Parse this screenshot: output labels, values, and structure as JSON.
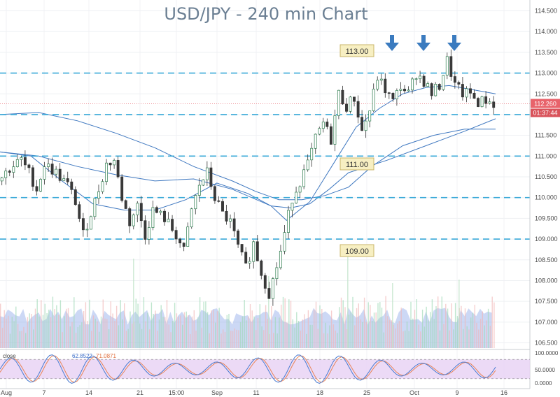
{
  "chart_data": {
    "type": "candlestick",
    "title": "USD/JPY - 240 min Chart",
    "ylim": [
      106.4,
      114.65
    ],
    "y_ticks": [
      "114.500",
      "114.000",
      "113.500",
      "113.000",
      "112.500",
      "112.000",
      "111.500",
      "111.000",
      "110.500",
      "110.000",
      "109.500",
      "109.000",
      "108.500",
      "108.000",
      "107.500",
      "107.000",
      "106.500"
    ],
    "x_ticks": [
      "Aug",
      "7",
      "14",
      "21",
      "15:00",
      "Sep",
      "11",
      "18",
      "25",
      "Oct",
      "9",
      "16"
    ],
    "support_resistance_levels": [
      113.0,
      112.0,
      111.0,
      110.0,
      109.0
    ],
    "level_labels": [
      "113.00",
      "111.00",
      "109.00"
    ],
    "current_price": "112.260",
    "countdown": "01:37:44",
    "arrows": 3,
    "price_path": [
      [
        0,
        110.4
      ],
      [
        3,
        110.7
      ],
      [
        6,
        110.9
      ],
      [
        8,
        110.6
      ],
      [
        10,
        110.2
      ],
      [
        12,
        110.8
      ],
      [
        15,
        110.6
      ],
      [
        18,
        110.3
      ],
      [
        20,
        109.9
      ],
      [
        22,
        109.1
      ],
      [
        25,
        109.9
      ],
      [
        28,
        110.8
      ],
      [
        30,
        110.9
      ],
      [
        32,
        110.0
      ],
      [
        34,
        109.4
      ],
      [
        36,
        109.8
      ],
      [
        38,
        109.1
      ],
      [
        40,
        109.7
      ],
      [
        43,
        109.5
      ],
      [
        46,
        109.1
      ],
      [
        48,
        108.7
      ],
      [
        50,
        109.7
      ],
      [
        52,
        110.3
      ],
      [
        54,
        110.6
      ],
      [
        56,
        110.0
      ],
      [
        58,
        109.6
      ],
      [
        60,
        109.4
      ],
      [
        62,
        108.8
      ],
      [
        64,
        108.3
      ],
      [
        66,
        108.9
      ],
      [
        68,
        108.2
      ],
      [
        70,
        107.7
      ],
      [
        71,
        108.0
      ],
      [
        73,
        108.7
      ],
      [
        76,
        110.0
      ],
      [
        78,
        110.4
      ],
      [
        80,
        110.8
      ],
      [
        82,
        111.4
      ],
      [
        84,
        111.8
      ],
      [
        86,
        111.4
      ],
      [
        88,
        112.5
      ],
      [
        90,
        112.2
      ],
      [
        92,
        112.4
      ],
      [
        94,
        111.6
      ],
      [
        96,
        112.1
      ],
      [
        98,
        112.9
      ],
      [
        100,
        112.6
      ],
      [
        102,
        112.3
      ],
      [
        104,
        112.7
      ],
      [
        106,
        112.5
      ],
      [
        108,
        113.0
      ],
      [
        110,
        112.8
      ],
      [
        112,
        112.5
      ],
      [
        114,
        112.7
      ],
      [
        116,
        113.3
      ],
      [
        118,
        112.7
      ],
      [
        120,
        112.5
      ],
      [
        122,
        112.5
      ],
      [
        124,
        112.3
      ],
      [
        126,
        112.35
      ],
      [
        128,
        112.26
      ]
    ],
    "moving_averages": [
      {
        "values": [
          [
            0,
            111.1
          ],
          [
            10,
            111.0
          ],
          [
            20,
            110.75
          ],
          [
            30,
            110.55
          ],
          [
            40,
            110.4
          ],
          [
            50,
            110.45
          ],
          [
            60,
            110.2
          ],
          [
            70,
            109.8
          ],
          [
            75,
            109.75
          ],
          [
            80,
            109.85
          ],
          [
            85,
            110.2
          ],
          [
            90,
            110.6
          ],
          [
            100,
            110.9
          ],
          [
            110,
            111.25
          ],
          [
            120,
            111.6
          ],
          [
            128,
            111.9
          ]
        ]
      },
      {
        "values": [
          [
            0,
            111.1
          ],
          [
            8,
            111.0
          ],
          [
            16,
            110.4
          ],
          [
            24,
            109.85
          ],
          [
            32,
            109.7
          ],
          [
            40,
            109.7
          ],
          [
            48,
            109.95
          ],
          [
            56,
            110.35
          ],
          [
            64,
            110.1
          ],
          [
            70,
            109.8
          ],
          [
            74,
            109.45
          ],
          [
            80,
            109.9
          ],
          [
            86,
            110.8
          ],
          [
            92,
            111.7
          ],
          [
            98,
            112.15
          ],
          [
            104,
            112.5
          ],
          [
            110,
            112.65
          ],
          [
            116,
            112.7
          ],
          [
            122,
            112.6
          ],
          [
            128,
            112.5
          ]
        ]
      },
      {
        "values": [
          [
            0,
            112.0
          ],
          [
            10,
            112.05
          ],
          [
            20,
            111.85
          ],
          [
            30,
            111.55
          ],
          [
            40,
            111.2
          ],
          [
            50,
            110.75
          ],
          [
            60,
            110.4
          ],
          [
            66,
            110.15
          ],
          [
            72,
            109.95
          ],
          [
            78,
            109.95
          ],
          [
            84,
            110.05
          ],
          [
            90,
            110.25
          ],
          [
            96,
            110.75
          ],
          [
            104,
            111.25
          ],
          [
            112,
            111.5
          ],
          [
            120,
            111.65
          ],
          [
            128,
            111.65
          ]
        ]
      }
    ],
    "oscillator": {
      "legend": [
        "close",
        "62.8522",
        "71.0871"
      ],
      "y_ticks": [
        "100.0000",
        "50.0000",
        "0.0000"
      ],
      "bands": [
        80,
        20
      ]
    }
  },
  "colors": {
    "up": "#26a69a",
    "down": "#ef5350",
    "level_line": "#3aa9d8",
    "ma": "#3f78c0",
    "volume": "#8ea8e8",
    "price_tag": "#e8636b",
    "arrow": "#3b7bbf",
    "label_bg": "#f7efc2",
    "osc_fill": "#e9d4f5",
    "stoch_k": "#4a7bd0",
    "stoch_d": "#e8845a"
  }
}
